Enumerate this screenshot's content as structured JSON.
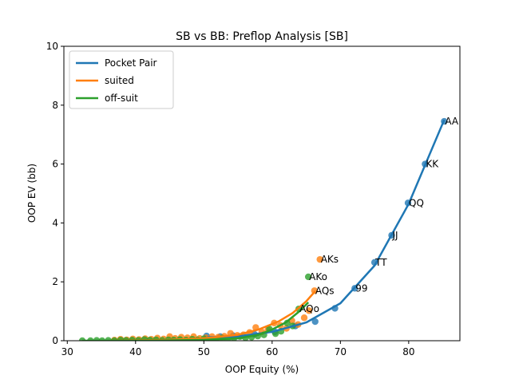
{
  "chart_data": {
    "type": "scatter",
    "title": "SB vs BB: Preflop Analysis [SB]",
    "xlabel": "OOP Equity (%)",
    "ylabel": "OOP EV (bb)",
    "xlim": [
      29.5,
      87.5
    ],
    "ylim": [
      0,
      10
    ],
    "xticks": [
      30,
      40,
      50,
      60,
      70,
      80
    ],
    "yticks": [
      0,
      2,
      4,
      6,
      8,
      10
    ],
    "grid": false,
    "legend_position": "top-left",
    "series": [
      {
        "name": "Pocket Pair",
        "color": "#1f77b4",
        "points": [
          {
            "x": 85.2,
            "y": 7.45,
            "label": "AA"
          },
          {
            "x": 82.4,
            "y": 6.0,
            "label": "KK"
          },
          {
            "x": 79.9,
            "y": 4.68,
            "label": "QQ"
          },
          {
            "x": 77.5,
            "y": 3.58,
            "label": "JJ"
          },
          {
            "x": 75.0,
            "y": 2.66,
            "label": "TT"
          },
          {
            "x": 72.1,
            "y": 1.78,
            "label": "99"
          },
          {
            "x": 69.2,
            "y": 1.1
          },
          {
            "x": 66.3,
            "y": 0.65
          },
          {
            "x": 63.4,
            "y": 0.5
          },
          {
            "x": 60.4,
            "y": 0.3
          },
          {
            "x": 57.4,
            "y": 0.22
          },
          {
            "x": 54.3,
            "y": 0.17
          },
          {
            "x": 52.4,
            "y": 0.14
          },
          {
            "x": 50.4,
            "y": 0.16
          }
        ],
        "curve": [
          [
            50.5,
            0.12
          ],
          [
            55,
            0.15
          ],
          [
            60,
            0.3
          ],
          [
            65,
            0.62
          ],
          [
            70,
            1.27
          ],
          [
            75,
            2.55
          ],
          [
            80,
            4.65
          ],
          [
            85.2,
            7.5
          ]
        ]
      },
      {
        "name": "suited",
        "color": "#ff7f0e",
        "points": [
          {
            "x": 67.0,
            "y": 2.76,
            "label": "AKs"
          },
          {
            "x": 66.2,
            "y": 1.7,
            "label": "AQs"
          },
          {
            "x": 65.4,
            "y": 1.02
          },
          {
            "x": 64.7,
            "y": 0.78
          },
          {
            "x": 63.8,
            "y": 0.55
          },
          {
            "x": 62.9,
            "y": 0.68
          },
          {
            "x": 62.1,
            "y": 0.42
          },
          {
            "x": 61.2,
            "y": 0.52
          },
          {
            "x": 60.3,
            "y": 0.6
          },
          {
            "x": 59.4,
            "y": 0.38
          },
          {
            "x": 58.5,
            "y": 0.3
          },
          {
            "x": 57.6,
            "y": 0.45
          },
          {
            "x": 56.7,
            "y": 0.28
          },
          {
            "x": 55.8,
            "y": 0.2
          },
          {
            "x": 54.9,
            "y": 0.18
          },
          {
            "x": 53.9,
            "y": 0.25
          },
          {
            "x": 53.0,
            "y": 0.15
          },
          {
            "x": 52.1,
            "y": 0.12
          },
          {
            "x": 51.2,
            "y": 0.14
          },
          {
            "x": 50.3,
            "y": 0.1
          },
          {
            "x": 49.4,
            "y": 0.08
          },
          {
            "x": 48.5,
            "y": 0.14
          },
          {
            "x": 47.6,
            "y": 0.1
          },
          {
            "x": 46.7,
            "y": 0.12
          },
          {
            "x": 45.8,
            "y": 0.08
          },
          {
            "x": 45.0,
            "y": 0.14
          },
          {
            "x": 44.1,
            "y": 0.06
          },
          {
            "x": 43.2,
            "y": 0.09
          },
          {
            "x": 42.3,
            "y": 0.05
          },
          {
            "x": 41.4,
            "y": 0.07
          },
          {
            "x": 40.5,
            "y": 0.04
          },
          {
            "x": 39.6,
            "y": 0.06
          },
          {
            "x": 38.7,
            "y": 0.03
          },
          {
            "x": 37.8,
            "y": 0.05
          },
          {
            "x": 36.9,
            "y": 0.02
          }
        ],
        "curve": [
          [
            36.5,
            0.0
          ],
          [
            40,
            0.01
          ],
          [
            45,
            0.03
          ],
          [
            50,
            0.08
          ],
          [
            55,
            0.2
          ],
          [
            58,
            0.38
          ],
          [
            61,
            0.66
          ],
          [
            63,
            0.94
          ],
          [
            65,
            1.34
          ],
          [
            66.3,
            1.68
          ]
        ]
      },
      {
        "name": "off-suit",
        "color": "#2ca02c",
        "points": [
          {
            "x": 65.3,
            "y": 2.17,
            "label": "AKo"
          },
          {
            "x": 63.9,
            "y": 1.08,
            "label": "AQo"
          },
          {
            "x": 63.0,
            "y": 0.5
          },
          {
            "x": 62.2,
            "y": 0.6
          },
          {
            "x": 61.3,
            "y": 0.32
          },
          {
            "x": 60.5,
            "y": 0.24
          },
          {
            "x": 59.6,
            "y": 0.4
          },
          {
            "x": 58.8,
            "y": 0.2
          },
          {
            "x": 57.9,
            "y": 0.16
          },
          {
            "x": 57.0,
            "y": 0.12
          },
          {
            "x": 56.1,
            "y": 0.1
          },
          {
            "x": 55.3,
            "y": 0.14
          },
          {
            "x": 54.4,
            "y": 0.08
          },
          {
            "x": 53.5,
            "y": 0.06
          },
          {
            "x": 52.7,
            "y": 0.09
          },
          {
            "x": 51.8,
            "y": 0.05
          },
          {
            "x": 50.9,
            "y": 0.04
          },
          {
            "x": 50.0,
            "y": 0.07
          },
          {
            "x": 49.1,
            "y": 0.03
          },
          {
            "x": 48.3,
            "y": 0.05
          },
          {
            "x": 47.4,
            "y": 0.02
          },
          {
            "x": 46.5,
            "y": 0.04
          },
          {
            "x": 45.6,
            "y": 0.02
          },
          {
            "x": 44.8,
            "y": 0.03
          },
          {
            "x": 43.9,
            "y": 0.01
          },
          {
            "x": 43.0,
            "y": 0.03
          },
          {
            "x": 42.1,
            "y": 0.02
          },
          {
            "x": 41.3,
            "y": 0.04
          },
          {
            "x": 40.4,
            "y": 0.01
          },
          {
            "x": 39.5,
            "y": 0.02
          },
          {
            "x": 38.6,
            "y": 0.01
          },
          {
            "x": 37.8,
            "y": 0.02
          },
          {
            "x": 36.9,
            "y": 0.0
          },
          {
            "x": 36.0,
            "y": 0.01
          },
          {
            "x": 35.1,
            "y": 0.0
          },
          {
            "x": 34.3,
            "y": 0.01
          },
          {
            "x": 33.4,
            "y": 0.0
          },
          {
            "x": 32.2,
            "y": 0.0
          }
        ],
        "curve": [
          [
            32.2,
            0.0
          ],
          [
            40,
            0.0
          ],
          [
            45,
            0.01
          ],
          [
            50,
            0.03
          ],
          [
            55,
            0.08
          ],
          [
            58,
            0.2
          ],
          [
            60,
            0.38
          ],
          [
            62,
            0.62
          ],
          [
            64,
            1.0
          ],
          [
            65.3,
            1.3
          ]
        ]
      }
    ]
  }
}
